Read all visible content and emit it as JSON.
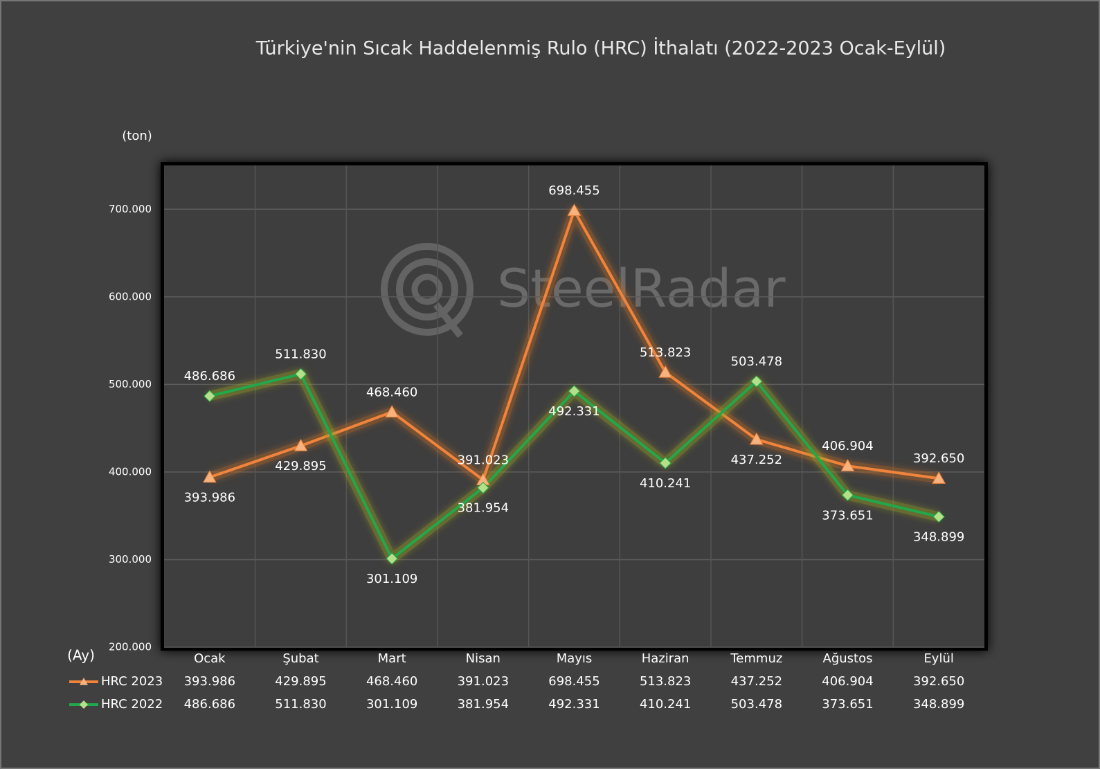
{
  "chart_data": {
    "type": "line",
    "title": "Türkiye'nin Sıcak Haddelenmiş Rulo (HRC) İthalatı (2022-2023 Ocak-Eylül)",
    "y_label": "(ton)",
    "x_label": "(Ay)",
    "watermark": "SteelRadar",
    "categories": [
      "Ocak",
      "Şubat",
      "Mart",
      "Nisan",
      "Mayıs",
      "Haziran",
      "Temmuz",
      "Ağustos",
      "Eylül"
    ],
    "series": [
      {
        "name": "HRC 2023",
        "color": "#f0843c",
        "marker": "triangle",
        "values": [
          393986,
          429895,
          468460,
          391023,
          698455,
          513823,
          437252,
          406904,
          392650
        ],
        "value_labels": [
          "393.986",
          "429.895",
          "468.460",
          "391.023",
          "698.455",
          "513.823",
          "437.252",
          "406.904",
          "392.650"
        ]
      },
      {
        "name": "HRC 2022",
        "color": "#22a84a",
        "marker": "diamond",
        "values": [
          486686,
          511830,
          301109,
          381954,
          492331,
          410241,
          503478,
          373651,
          348899
        ],
        "value_labels": [
          "486.686",
          "511.830",
          "301.109",
          "381.954",
          "492.331",
          "410.241",
          "503.478",
          "373.651",
          "348.899"
        ]
      }
    ],
    "ylim": [
      200000,
      750000
    ],
    "yticks": [
      {
        "value": 200000,
        "label": "200.000"
      },
      {
        "value": 300000,
        "label": "300.000"
      },
      {
        "value": 400000,
        "label": "400.000"
      },
      {
        "value": 500000,
        "label": "500.000"
      },
      {
        "value": 600000,
        "label": "600.000"
      },
      {
        "value": 700000,
        "label": "700.000"
      }
    ],
    "grid": true,
    "data_table": true
  }
}
